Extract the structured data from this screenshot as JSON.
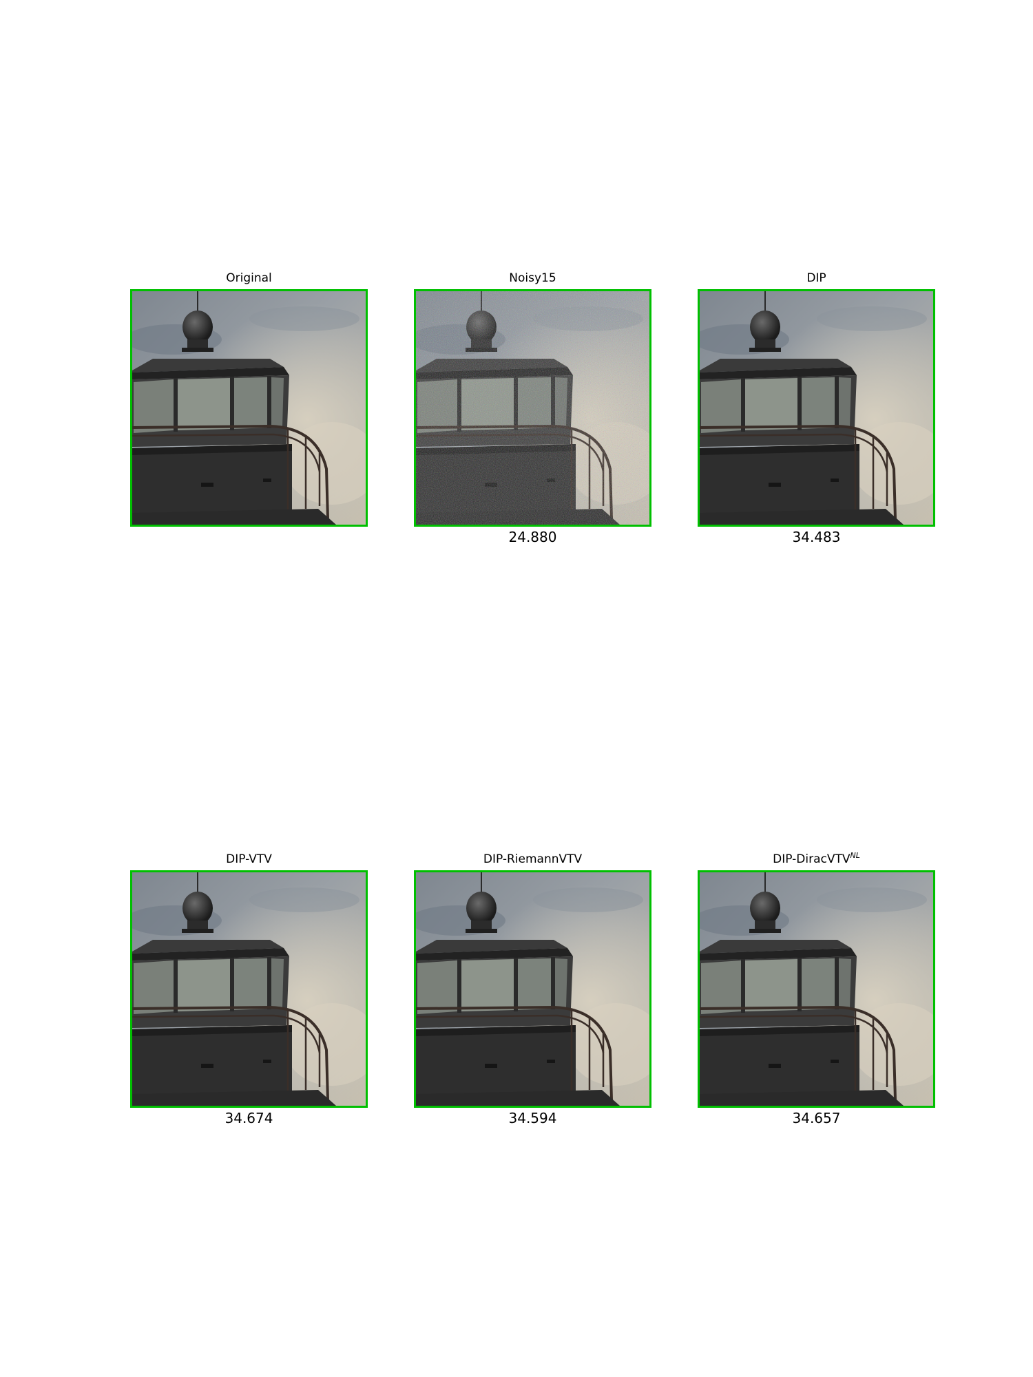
{
  "figure": {
    "panels": [
      {
        "title": "Original",
        "title_sup": "",
        "psnr": "",
        "noise": 0
      },
      {
        "title": "Noisy15",
        "title_sup": "",
        "psnr": "24.880",
        "noise": 1
      },
      {
        "title": "DIP",
        "title_sup": "",
        "psnr": "34.483",
        "noise": 0
      },
      {
        "title": "DIP-VTV",
        "title_sup": "",
        "psnr": "34.674",
        "noise": 0
      },
      {
        "title": "DIP-RiemannVTV",
        "title_sup": "",
        "psnr": "34.594",
        "noise": 0
      },
      {
        "title": "DIP-DiracVTV",
        "title_sup": "NL",
        "psnr": "34.657",
        "noise": 0
      }
    ],
    "frame_color": "#00c000",
    "image_subject": "lighthouse lantern room against cloudy sky"
  }
}
